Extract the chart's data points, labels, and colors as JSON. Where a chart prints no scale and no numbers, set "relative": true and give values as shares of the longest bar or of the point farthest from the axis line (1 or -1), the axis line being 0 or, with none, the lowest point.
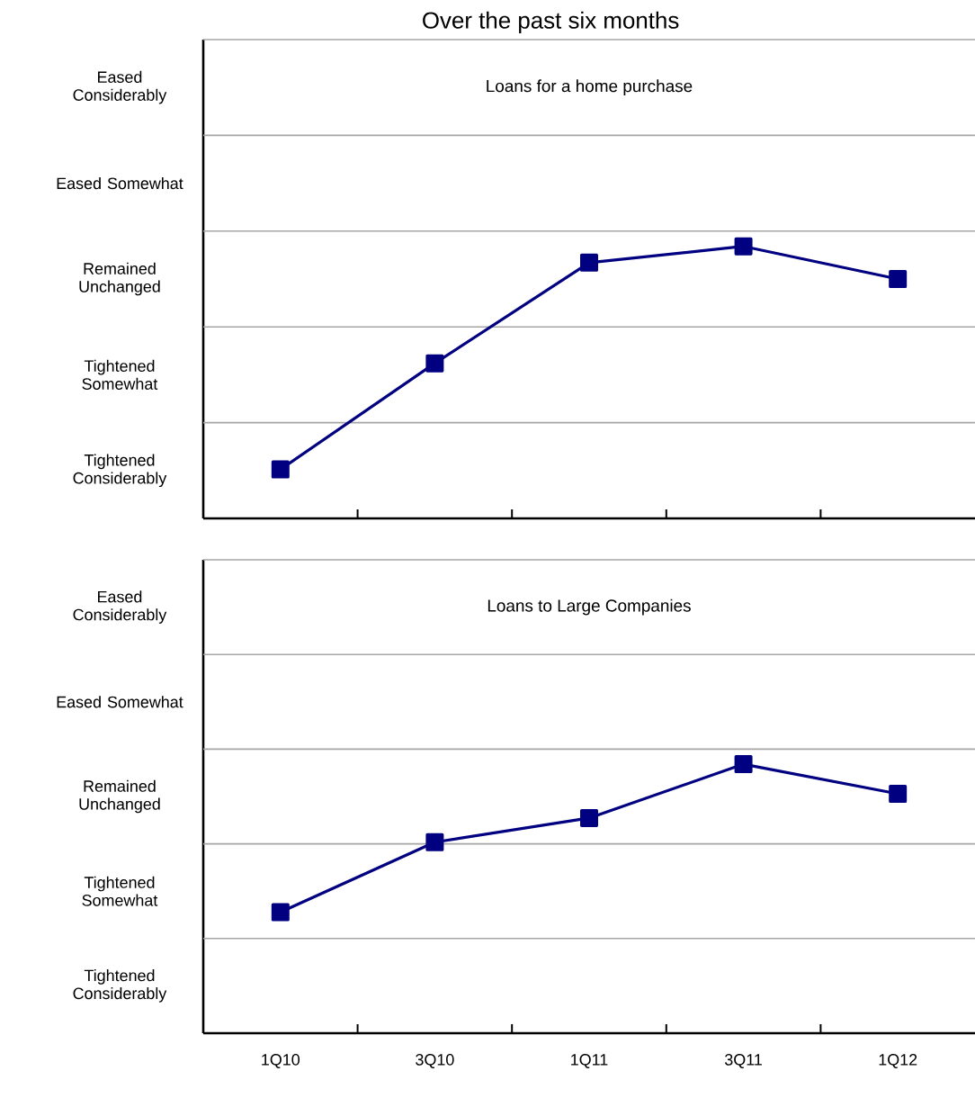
{
  "chart_data": [
    {
      "type": "line",
      "title": "Over the past six months",
      "subtitle": "Loans for a home purchase",
      "categories": [
        null,
        null,
        null,
        null,
        null
      ],
      "series": [
        {
          "color": "#000080",
          "values": [
            0.18,
            0.57,
            0.94,
            1.0,
            0.88
          ]
        }
      ],
      "relative": true,
      "annotations": [
        "Tightened Considerably",
        "Tightened Somewhat",
        "Remained Unchanged",
        "Eased Somewhat",
        "Eased Considerably"
      ],
      "ref_lines": [
        {
          "axis": "y",
          "value": 0.352,
          "color": "#a6a6a6"
        },
        {
          "axis": "y",
          "value": 0.704,
          "color": "#a6a6a6"
        },
        {
          "axis": "y",
          "value": 1.056,
          "color": "#a6a6a6"
        },
        {
          "axis": "y",
          "value": 1.408,
          "color": "#a6a6a6"
        },
        {
          "axis": "y",
          "value": 1.76,
          "color": "#a6a6a6"
        }
      ],
      "marker": "square",
      "line_style": "solid"
    },
    {
      "type": "line",
      "subtitle": "Loans to Large Companies",
      "categories": [
        "1Q10",
        "3Q10",
        "1Q11",
        "3Q11",
        "1Q12"
      ],
      "series": [
        {
          "color": "#000080",
          "values": [
            0.45,
            0.71,
            0.8,
            1.0,
            0.89
          ]
        }
      ],
      "relative": true,
      "annotations": [
        "Tightened Considerably",
        "Tightened Somewhat",
        "Remained Unchanged",
        "Eased Somewhat",
        "Eased Considerably"
      ],
      "ref_lines": [
        {
          "axis": "y",
          "value": 0.352,
          "color": "#a6a6a6"
        },
        {
          "axis": "y",
          "value": 0.704,
          "color": "#a6a6a6"
        },
        {
          "axis": "y",
          "value": 1.056,
          "color": "#a6a6a6"
        },
        {
          "axis": "y",
          "value": 1.408,
          "color": "#a6a6a6"
        },
        {
          "axis": "y",
          "value": 1.76,
          "color": "#a6a6a6"
        }
      ],
      "marker": "square",
      "line_style": "solid"
    }
  ]
}
